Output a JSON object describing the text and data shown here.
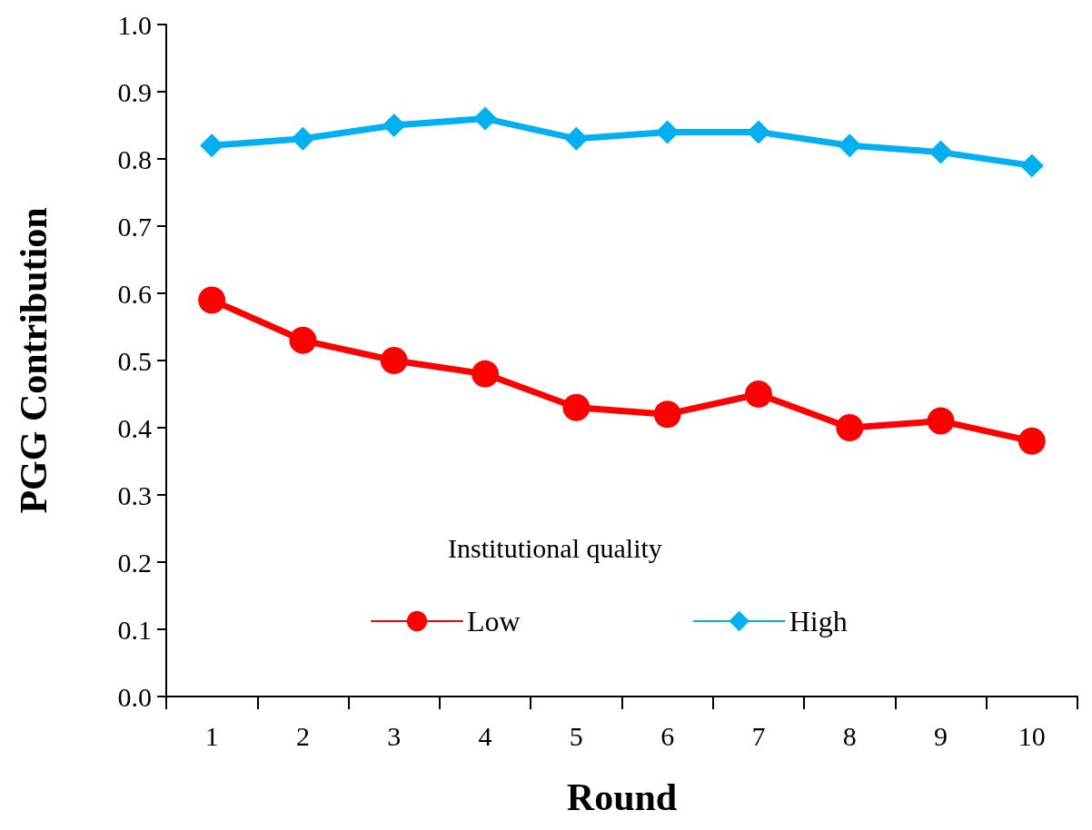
{
  "chart_data": {
    "type": "line",
    "xlabel": "Round",
    "ylabel": "PGG Contribution",
    "legend_title": "Institutional quality",
    "categories": [
      "1",
      "2",
      "3",
      "4",
      "5",
      "6",
      "7",
      "8",
      "9",
      "10"
    ],
    "series": [
      {
        "name": "Low",
        "color": "#ff0000",
        "marker": "circle",
        "values": [
          0.59,
          0.53,
          0.5,
          0.48,
          0.43,
          0.42,
          0.45,
          0.4,
          0.41,
          0.38
        ]
      },
      {
        "name": "High",
        "color": "#00b0f0",
        "marker": "diamond",
        "values": [
          0.82,
          0.83,
          0.85,
          0.86,
          0.83,
          0.84,
          0.84,
          0.82,
          0.81,
          0.79
        ]
      }
    ],
    "ylim": [
      0,
      1
    ],
    "yticks": [
      {
        "value": 0,
        "label": "0.0"
      },
      {
        "value": 0.1,
        "label": "0.1"
      },
      {
        "value": 0.2,
        "label": "0.2"
      },
      {
        "value": 0.3,
        "label": "0.3"
      },
      {
        "value": 0.4,
        "label": "0.4"
      },
      {
        "value": 0.5,
        "label": "0.5"
      },
      {
        "value": 0.6,
        "label": "0.6"
      },
      {
        "value": 0.7,
        "label": "0.7"
      },
      {
        "value": 0.8,
        "label": "0.8"
      },
      {
        "value": 0.9,
        "label": "0.9"
      },
      {
        "value": 1,
        "label": "1.0"
      }
    ],
    "grid": false,
    "legend": "bottom",
    "line_style": "solid"
  }
}
